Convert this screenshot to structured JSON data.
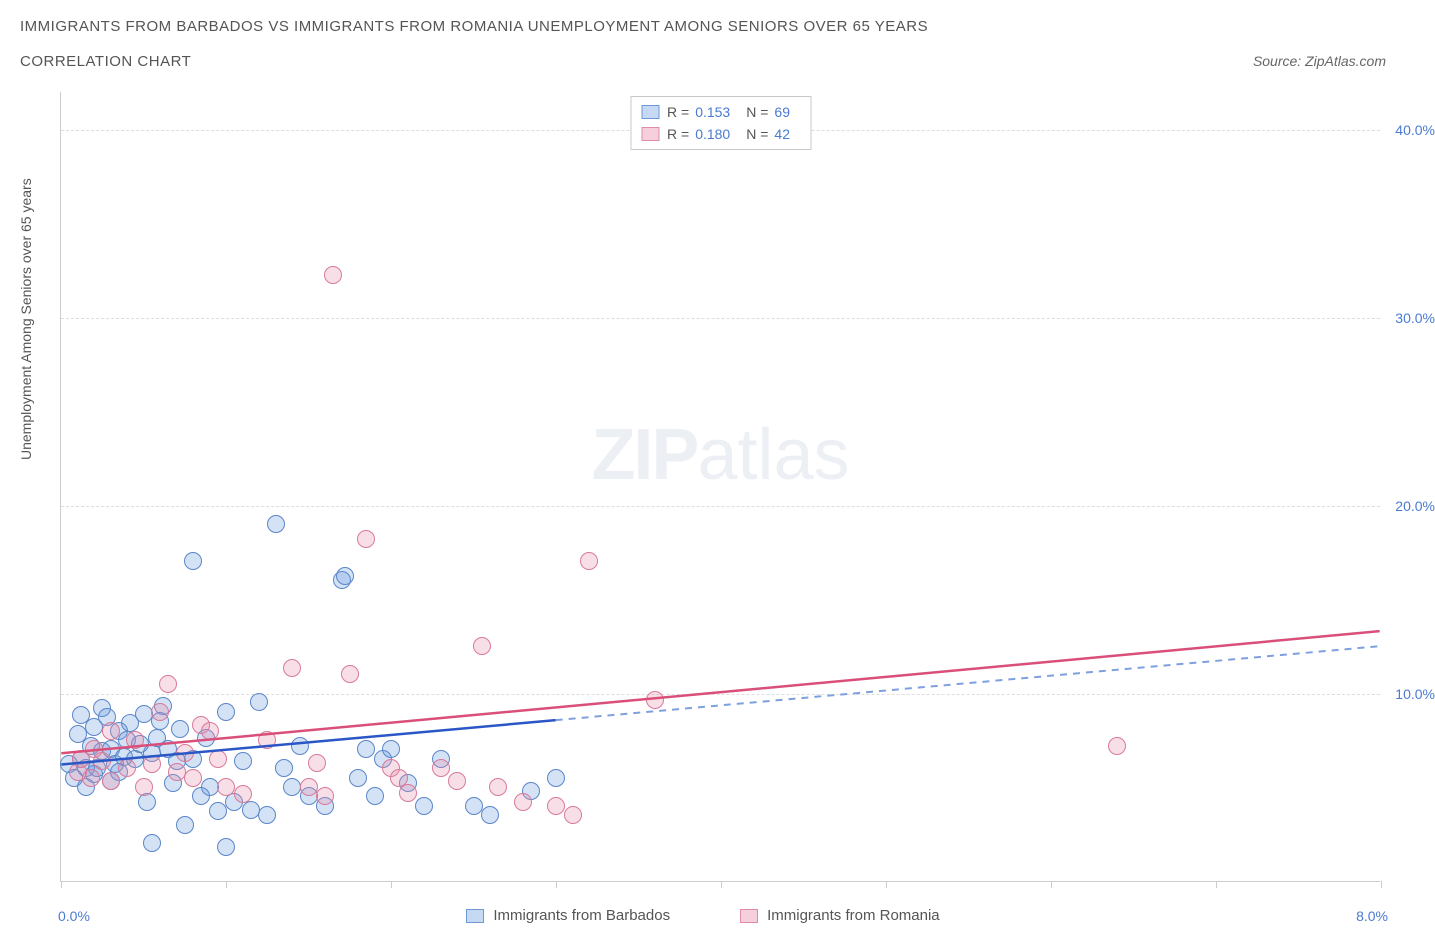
{
  "title": "IMMIGRANTS FROM BARBADOS VS IMMIGRANTS FROM ROMANIA UNEMPLOYMENT AMONG SENIORS OVER 65 YEARS",
  "subtitle": "CORRELATION CHART",
  "source": "Source: ZipAtlas.com",
  "watermark_zip": "ZIP",
  "watermark_atlas": "atlas",
  "y_axis_title": "Unemployment Among Seniors over 65 years",
  "chart": {
    "type": "scatter",
    "background_color": "#ffffff",
    "grid_color": "#dddddd",
    "axis_color": "#cccccc",
    "tick_label_color": "#4a7bd0",
    "xlim": [
      0.0,
      8.0
    ],
    "ylim": [
      0.0,
      42.0
    ],
    "y_ticks": [
      10.0,
      20.0,
      30.0,
      40.0
    ],
    "y_tick_labels": [
      "10.0%",
      "20.0%",
      "30.0%",
      "40.0%"
    ],
    "x_ticks": [
      0.0,
      1.0,
      2.0,
      3.0,
      4.0,
      5.0,
      6.0,
      7.0,
      8.0
    ],
    "x_left_label": "0.0%",
    "x_right_label": "8.0%",
    "marker_radius": 9,
    "marker_opacity_fill": 0.28,
    "stats_box": {
      "r_label": "R =",
      "n_label": "N =",
      "rows": [
        {
          "swatch_fill": "#c6d8f2",
          "swatch_border": "#6f98d8",
          "r": "0.153",
          "n": "69"
        },
        {
          "swatch_fill": "#f5cfdc",
          "swatch_border": "#de8da9",
          "r": "0.180",
          "n": "42"
        }
      ]
    },
    "series": [
      {
        "name": "Immigrants from Barbados",
        "fill": "rgba(100,150,220,0.28)",
        "stroke": "#5b86c9",
        "trend": {
          "color": "#2a56c6",
          "dash_color": "#7ea0dc",
          "solid_until_x": 3.0,
          "y_at_x0": 6.2,
          "y_at_xmax": 12.5
        },
        "points": [
          [
            0.05,
            6.2
          ],
          [
            0.08,
            5.5
          ],
          [
            0.1,
            7.8
          ],
          [
            0.12,
            6.5
          ],
          [
            0.12,
            8.8
          ],
          [
            0.15,
            5.0
          ],
          [
            0.15,
            6.0
          ],
          [
            0.18,
            7.2
          ],
          [
            0.2,
            5.7
          ],
          [
            0.2,
            8.2
          ],
          [
            0.22,
            6.0
          ],
          [
            0.25,
            6.9
          ],
          [
            0.25,
            9.2
          ],
          [
            0.28,
            8.7
          ],
          [
            0.3,
            5.3
          ],
          [
            0.3,
            7.0
          ],
          [
            0.33,
            6.2
          ],
          [
            0.35,
            5.8
          ],
          [
            0.35,
            8.0
          ],
          [
            0.38,
            6.6
          ],
          [
            0.4,
            7.5
          ],
          [
            0.42,
            8.4
          ],
          [
            0.45,
            6.5
          ],
          [
            0.48,
            7.3
          ],
          [
            0.5,
            8.9
          ],
          [
            0.52,
            4.2
          ],
          [
            0.55,
            2.0
          ],
          [
            0.55,
            6.8
          ],
          [
            0.58,
            7.6
          ],
          [
            0.6,
            8.5
          ],
          [
            0.62,
            9.3
          ],
          [
            0.65,
            7.0
          ],
          [
            0.68,
            5.2
          ],
          [
            0.7,
            6.4
          ],
          [
            0.72,
            8.1
          ],
          [
            0.75,
            3.0
          ],
          [
            0.8,
            17.0
          ],
          [
            0.8,
            6.5
          ],
          [
            0.85,
            4.5
          ],
          [
            0.88,
            7.6
          ],
          [
            0.9,
            5.0
          ],
          [
            0.95,
            3.7
          ],
          [
            1.0,
            9.0
          ],
          [
            1.0,
            1.8
          ],
          [
            1.05,
            4.2
          ],
          [
            1.1,
            6.4
          ],
          [
            1.15,
            3.8
          ],
          [
            1.2,
            9.5
          ],
          [
            1.25,
            3.5
          ],
          [
            1.3,
            19.0
          ],
          [
            1.35,
            6.0
          ],
          [
            1.4,
            5.0
          ],
          [
            1.45,
            7.2
          ],
          [
            1.5,
            4.5
          ],
          [
            1.6,
            4.0
          ],
          [
            1.7,
            16.0
          ],
          [
            1.72,
            16.2
          ],
          [
            1.8,
            5.5
          ],
          [
            1.85,
            7.0
          ],
          [
            1.9,
            4.5
          ],
          [
            1.95,
            6.5
          ],
          [
            2.0,
            7.0
          ],
          [
            2.1,
            5.2
          ],
          [
            2.2,
            4.0
          ],
          [
            2.3,
            6.5
          ],
          [
            2.5,
            4.0
          ],
          [
            2.6,
            3.5
          ],
          [
            2.85,
            4.8
          ],
          [
            3.0,
            5.5
          ]
        ]
      },
      {
        "name": "Immigrants from Romania",
        "fill": "rgba(230,140,170,0.28)",
        "stroke": "#d97a9a",
        "trend": {
          "color": "#d94f7a",
          "dash_color": "#d94f7a",
          "solid_until_x": 8.0,
          "y_at_x0": 6.8,
          "y_at_xmax": 13.3
        },
        "points": [
          [
            0.1,
            5.8
          ],
          [
            0.12,
            6.5
          ],
          [
            0.18,
            5.5
          ],
          [
            0.2,
            7.0
          ],
          [
            0.25,
            6.4
          ],
          [
            0.3,
            5.3
          ],
          [
            0.3,
            8.0
          ],
          [
            0.4,
            6.0
          ],
          [
            0.45,
            7.5
          ],
          [
            0.5,
            5.0
          ],
          [
            0.55,
            6.2
          ],
          [
            0.6,
            9.0
          ],
          [
            0.65,
            10.5
          ],
          [
            0.7,
            5.8
          ],
          [
            0.75,
            6.8
          ],
          [
            0.8,
            5.5
          ],
          [
            0.85,
            8.3
          ],
          [
            0.9,
            8.0
          ],
          [
            0.95,
            6.5
          ],
          [
            1.0,
            5.0
          ],
          [
            1.1,
            4.6
          ],
          [
            1.25,
            7.5
          ],
          [
            1.4,
            11.3
          ],
          [
            1.5,
            5.0
          ],
          [
            1.55,
            6.3
          ],
          [
            1.6,
            4.5
          ],
          [
            1.65,
            32.2
          ],
          [
            1.75,
            11.0
          ],
          [
            1.85,
            18.2
          ],
          [
            2.0,
            6.0
          ],
          [
            2.05,
            5.5
          ],
          [
            2.1,
            4.7
          ],
          [
            2.3,
            6.0
          ],
          [
            2.4,
            5.3
          ],
          [
            2.55,
            12.5
          ],
          [
            2.65,
            5.0
          ],
          [
            2.8,
            4.2
          ],
          [
            3.0,
            4.0
          ],
          [
            3.1,
            3.5
          ],
          [
            3.2,
            17.0
          ],
          [
            3.6,
            9.6
          ],
          [
            6.4,
            7.2
          ]
        ]
      }
    ],
    "bottom_legend": [
      {
        "swatch_fill": "#c6d8f2",
        "swatch_border": "#6f98d8",
        "label": "Immigrants from Barbados"
      },
      {
        "swatch_fill": "#f5cfdc",
        "swatch_border": "#de8da9",
        "label": "Immigrants from Romania"
      }
    ]
  }
}
